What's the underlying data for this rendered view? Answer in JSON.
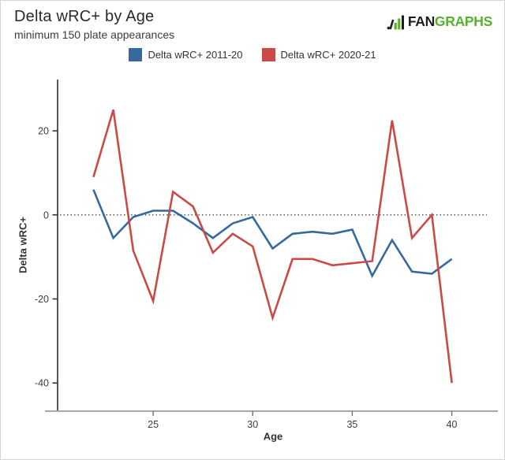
{
  "header": {
    "title": "Delta wRC+ by Age",
    "subtitle": "minimum 150 plate appearances"
  },
  "logo": {
    "prefix": "FAN",
    "suffix": "GRAPHS",
    "green": "#56b22d",
    "black": "#1d1d1b"
  },
  "legend": {
    "items": [
      {
        "label": "Delta wRC+ 2011-20",
        "color": "#36699e"
      },
      {
        "label": "Delta wRC+ 2020-21",
        "color": "#c94a47"
      }
    ]
  },
  "chart_data": {
    "type": "line",
    "title": "Delta wRC+ by Age",
    "subtitle": "minimum 150 plate appearances",
    "xlabel": "Age",
    "ylabel": "Delta wRC+",
    "x": [
      22,
      23,
      24,
      25,
      26,
      27,
      28,
      29,
      30,
      31,
      32,
      33,
      34,
      35,
      36,
      37,
      38,
      39,
      40
    ],
    "series": [
      {
        "name": "Delta wRC+ 2011-20",
        "color": "#36699e",
        "values": [
          6,
          -5.5,
          -0.5,
          1,
          1,
          -2,
          -5.5,
          -2,
          -0.5,
          -8,
          -4.5,
          -4,
          -4.5,
          -3.5,
          -14.5,
          -6,
          -13.5,
          -14,
          -10.5
        ]
      },
      {
        "name": "Delta wRC+ 2020-21",
        "color": "#c94a47",
        "values": [
          9,
          25,
          -8.5,
          -20.5,
          5.5,
          2,
          -9,
          -4.5,
          -7.5,
          -24.5,
          -10.5,
          -10.5,
          -12,
          -11.5,
          -11,
          22.5,
          -5.5,
          0,
          -40
        ]
      }
    ],
    "xticks": [
      25,
      30,
      35,
      40
    ],
    "yticks": [
      20,
      0,
      -20,
      -40
    ],
    "xlim": [
      20.2,
      41.84
    ],
    "ylim": [
      -46.7,
      32.2
    ],
    "zero_line": "dotted",
    "grid": "off",
    "legend_position": "top-center"
  }
}
